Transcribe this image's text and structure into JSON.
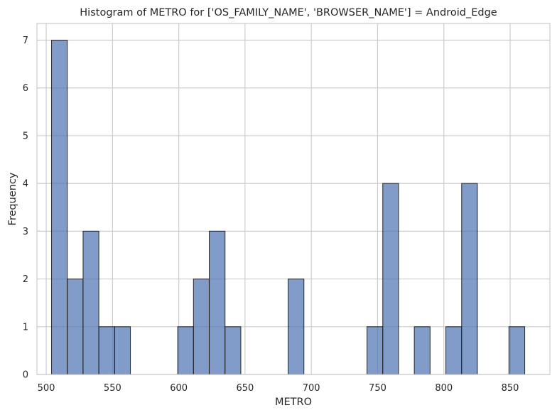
{
  "chart_data": {
    "type": "bar",
    "title": "Histogram of METRO for ['OS_FAMILY_NAME', 'BROWSER_NAME'] = Android_Edge",
    "xlabel": "METRO",
    "ylabel": "Frequency",
    "xlim": [
      493,
      880
    ],
    "ylim": [
      0,
      7.35
    ],
    "xticks": [
      500,
      550,
      600,
      650,
      700,
      750,
      800,
      850
    ],
    "yticks": [
      0,
      1,
      2,
      3,
      4,
      5,
      6,
      7
    ],
    "grid": true,
    "bin_width": 11.9,
    "bins": [
      {
        "x0": 504,
        "value": 7
      },
      {
        "x0": 515.9,
        "value": 2
      },
      {
        "x0": 527.8,
        "value": 3
      },
      {
        "x0": 539.7,
        "value": 1
      },
      {
        "x0": 551.6,
        "value": 1
      },
      {
        "x0": 599.2,
        "value": 1
      },
      {
        "x0": 611.1,
        "value": 2
      },
      {
        "x0": 623,
        "value": 3
      },
      {
        "x0": 634.9,
        "value": 1
      },
      {
        "x0": 682.5,
        "value": 2
      },
      {
        "x0": 742,
        "value": 1
      },
      {
        "x0": 753.9,
        "value": 4
      },
      {
        "x0": 777.7,
        "value": 1
      },
      {
        "x0": 801.5,
        "value": 1
      },
      {
        "x0": 813.4,
        "value": 4
      },
      {
        "x0": 849.1,
        "value": 1
      }
    ]
  }
}
